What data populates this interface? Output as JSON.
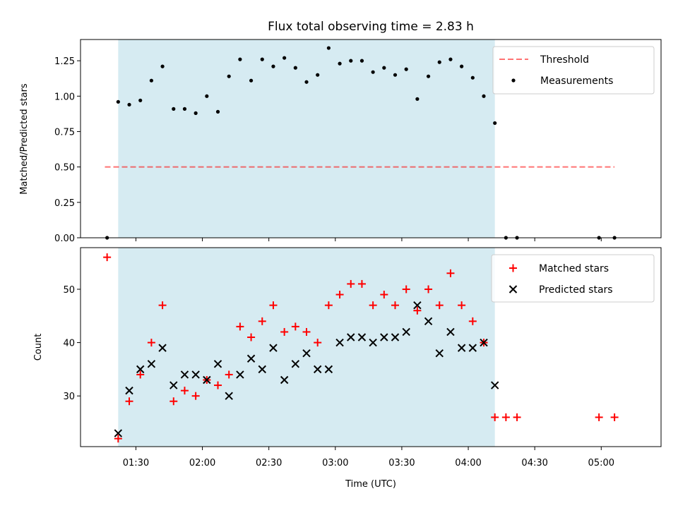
{
  "title": "Flux total observing time = 2.83 h",
  "colors": {
    "shade": "#add8e6",
    "threshold": "#ff0000",
    "matched": "#ff0000",
    "predicted": "#000000",
    "measurement": "#000000"
  },
  "chart_data": [
    {
      "type": "scatter",
      "ylabel": "Matched/Predicted stars",
      "ylim": [
        0,
        1.4
      ],
      "yticks": [
        0,
        0.25,
        0.5,
        0.75,
        1.0,
        1.25
      ],
      "yticklabels": [
        "0.00",
        "0.25",
        "0.50",
        "0.75",
        "1.00",
        "1.25"
      ],
      "xlim": [
        65,
        327
      ],
      "xticks": [
        90,
        120,
        150,
        180,
        210,
        240,
        270,
        300
      ],
      "shaded_span": [
        82,
        252
      ],
      "threshold": {
        "name": "Threshold",
        "value": 0.5,
        "x_range": [
          76,
          306
        ]
      },
      "legend": {
        "position": "top-right",
        "entries": [
          "Threshold",
          "Measurements"
        ]
      },
      "series": [
        {
          "name": "Measurements",
          "x": [
            77,
            82,
            87,
            92,
            97,
            102,
            107,
            112,
            117,
            122,
            127,
            132,
            137,
            142,
            147,
            152,
            157,
            162,
            167,
            172,
            177,
            182,
            187,
            192,
            197,
            202,
            207,
            212,
            217,
            222,
            227,
            232,
            237,
            242,
            247,
            252,
            257,
            262,
            299,
            306
          ],
          "values": [
            0.0,
            0.96,
            0.94,
            0.97,
            1.11,
            1.21,
            0.91,
            0.91,
            0.88,
            1.0,
            0.89,
            1.14,
            1.26,
            1.11,
            1.26,
            1.21,
            1.27,
            1.2,
            1.1,
            1.15,
            1.34,
            1.23,
            1.25,
            1.25,
            1.17,
            1.2,
            1.15,
            1.19,
            0.98,
            1.14,
            1.24,
            1.26,
            1.21,
            1.13,
            1.0,
            0.81,
            0.0,
            0.0,
            0.0,
            0.0
          ]
        }
      ]
    },
    {
      "type": "scatter",
      "xlabel": "Time (UTC)",
      "ylabel": "Count",
      "ylim": [
        20.5,
        57.8
      ],
      "yticks": [
        30,
        40,
        50
      ],
      "yticklabels": [
        "30",
        "40",
        "50"
      ],
      "xlim": [
        65,
        327
      ],
      "xticks": [
        90,
        120,
        150,
        180,
        210,
        240,
        270,
        300
      ],
      "xticklabels": [
        "01:30",
        "02:00",
        "02:30",
        "03:00",
        "03:30",
        "04:00",
        "04:30",
        "05:00"
      ],
      "shaded_span": [
        82,
        252
      ],
      "legend": {
        "position": "top-right",
        "entries": [
          "Matched stars",
          "Predicted stars"
        ]
      },
      "series": [
        {
          "name": "Matched stars",
          "marker": "plus",
          "x": [
            77,
            82,
            87,
            92,
            97,
            102,
            107,
            112,
            117,
            122,
            127,
            132,
            137,
            142,
            147,
            152,
            157,
            162,
            167,
            172,
            177,
            182,
            187,
            192,
            197,
            202,
            207,
            212,
            217,
            222,
            227,
            232,
            237,
            242,
            247,
            252,
            257,
            262,
            299,
            306
          ],
          "values": [
            56,
            22,
            29,
            34,
            40,
            47,
            29,
            31,
            30,
            33,
            32,
            34,
            43,
            41,
            44,
            47,
            42,
            43,
            42,
            40,
            47,
            49,
            51,
            51,
            47,
            49,
            47,
            50,
            46,
            50,
            47,
            53,
            47,
            44,
            40,
            26,
            26,
            26,
            26,
            26
          ]
        },
        {
          "name": "Predicted stars",
          "marker": "x",
          "x": [
            82,
            87,
            92,
            97,
            102,
            107,
            112,
            117,
            122,
            127,
            132,
            137,
            142,
            147,
            152,
            157,
            162,
            167,
            172,
            177,
            182,
            187,
            192,
            197,
            202,
            207,
            212,
            217,
            222,
            227,
            232,
            237,
            242,
            247,
            252
          ],
          "values": [
            23,
            31,
            35,
            36,
            39,
            32,
            34,
            34,
            33,
            36,
            30,
            34,
            37,
            35,
            39,
            33,
            36,
            38,
            35,
            35,
            40,
            41,
            41,
            40,
            41,
            41,
            42,
            47,
            44,
            38,
            42,
            39,
            39,
            40,
            32
          ]
        }
      ]
    }
  ]
}
